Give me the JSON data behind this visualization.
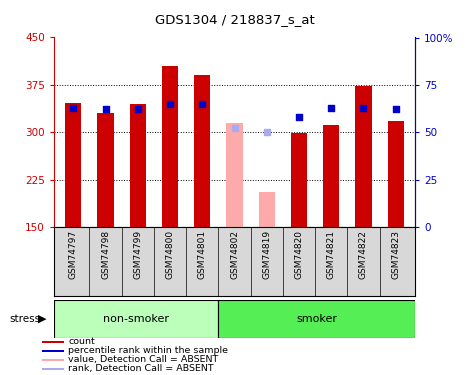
{
  "title": "GDS1304 / 218837_s_at",
  "samples": [
    "GSM74797",
    "GSM74798",
    "GSM74799",
    "GSM74800",
    "GSM74801",
    "GSM74802",
    "GSM74819",
    "GSM74820",
    "GSM74821",
    "GSM74822",
    "GSM74823"
  ],
  "absent": [
    false,
    false,
    false,
    false,
    false,
    true,
    true,
    false,
    false,
    false,
    false
  ],
  "count_values": [
    347,
    330,
    345,
    405,
    390,
    315,
    205,
    298,
    312,
    373,
    318
  ],
  "rank_values": [
    63,
    62,
    62,
    65,
    65,
    52,
    50,
    58,
    63,
    63,
    62
  ],
  "ylim_left": [
    150,
    450
  ],
  "ylim_right": [
    0,
    100
  ],
  "yticks_left": [
    150,
    225,
    300,
    375,
    450
  ],
  "yticks_right": [
    0,
    25,
    50,
    75,
    100
  ],
  "group_labels": [
    "non-smoker",
    "smoker"
  ],
  "nonsmoker_count": 5,
  "smoker_count": 6,
  "bar_color_present": "#cc0000",
  "bar_color_absent": "#ffaaaa",
  "rank_color_present": "#0000cc",
  "rank_color_absent": "#aaaaee",
  "bg_color_nonsmoker": "#bbffbb",
  "bg_color_smoker": "#55ee55",
  "tick_color_left": "#cc0000",
  "tick_color_right": "#0000cc",
  "grid_color": "black",
  "grid_linestyle": ":",
  "bar_width": 0.5,
  "rank_square_size": 22
}
